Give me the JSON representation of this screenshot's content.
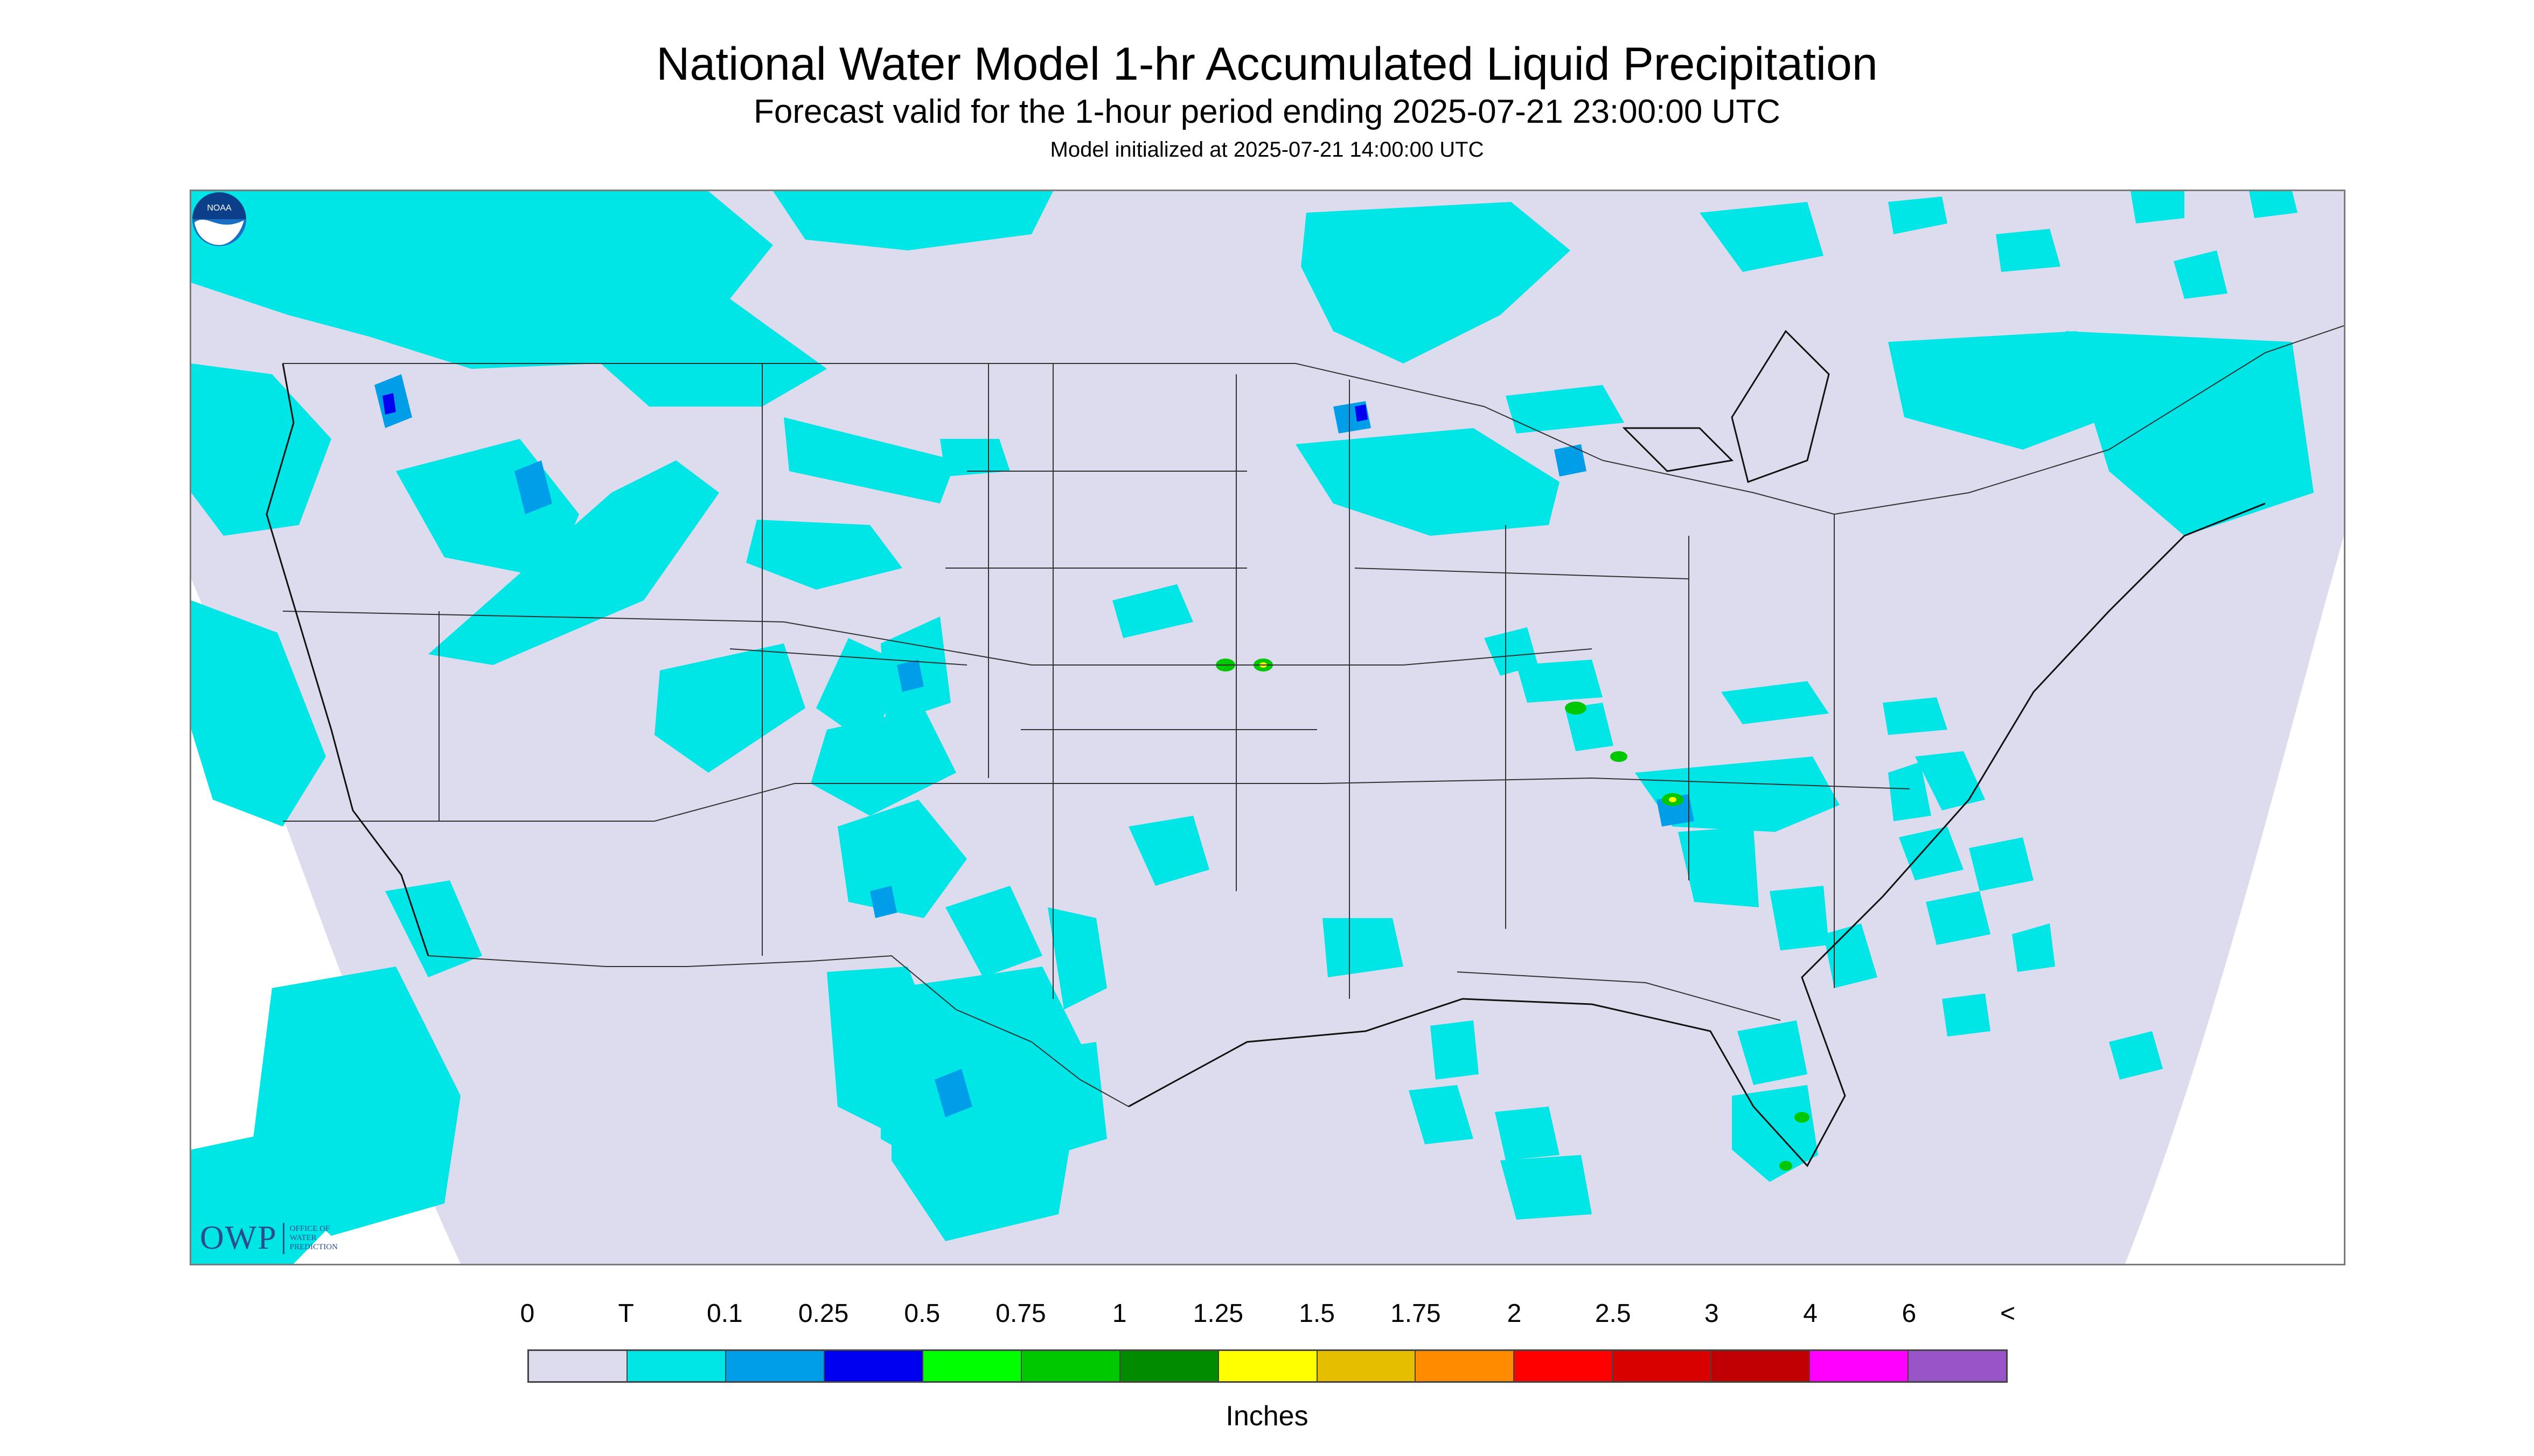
{
  "header": {
    "title": "National Water Model 1-hr Accumulated Liquid Precipitation",
    "subtitle": "Forecast valid for the 1-hour period ending 2025-07-21 23:00:00 UTC",
    "init": "Model initialized at 2025-07-21 14:00:00 UTC"
  },
  "logos": {
    "owp_mark": "OWP",
    "owp_text_1": "OFFICE OF",
    "owp_text_2": "WATER",
    "owp_text_3": "PREDICTION",
    "noaa_text": "NOAA"
  },
  "legend": {
    "labels": [
      "0",
      "T",
      "0.1",
      "0.25",
      "0.5",
      "0.75",
      "1",
      "1.25",
      "1.5",
      "1.75",
      "2",
      "2.5",
      "3",
      "4",
      "6",
      "<"
    ],
    "colors": [
      "#dcdcee",
      "#00e5e5",
      "#009ee8",
      "#0000f0",
      "#00ff00",
      "#00c800",
      "#008c00",
      "#ffff00",
      "#e6be00",
      "#ff8c00",
      "#ff0000",
      "#d90000",
      "#c00000",
      "#ff00ff",
      "#9955c8"
    ],
    "units": "Inches"
  },
  "map": {
    "background_color": "#dcdcee",
    "precip_light_color": "#00e5e5",
    "precip_moderate_color": "#009ee8",
    "precip_heavy_color": "#0000f0",
    "precip_green_color": "#00c800",
    "precip_yellow_color": "#ffff00"
  }
}
